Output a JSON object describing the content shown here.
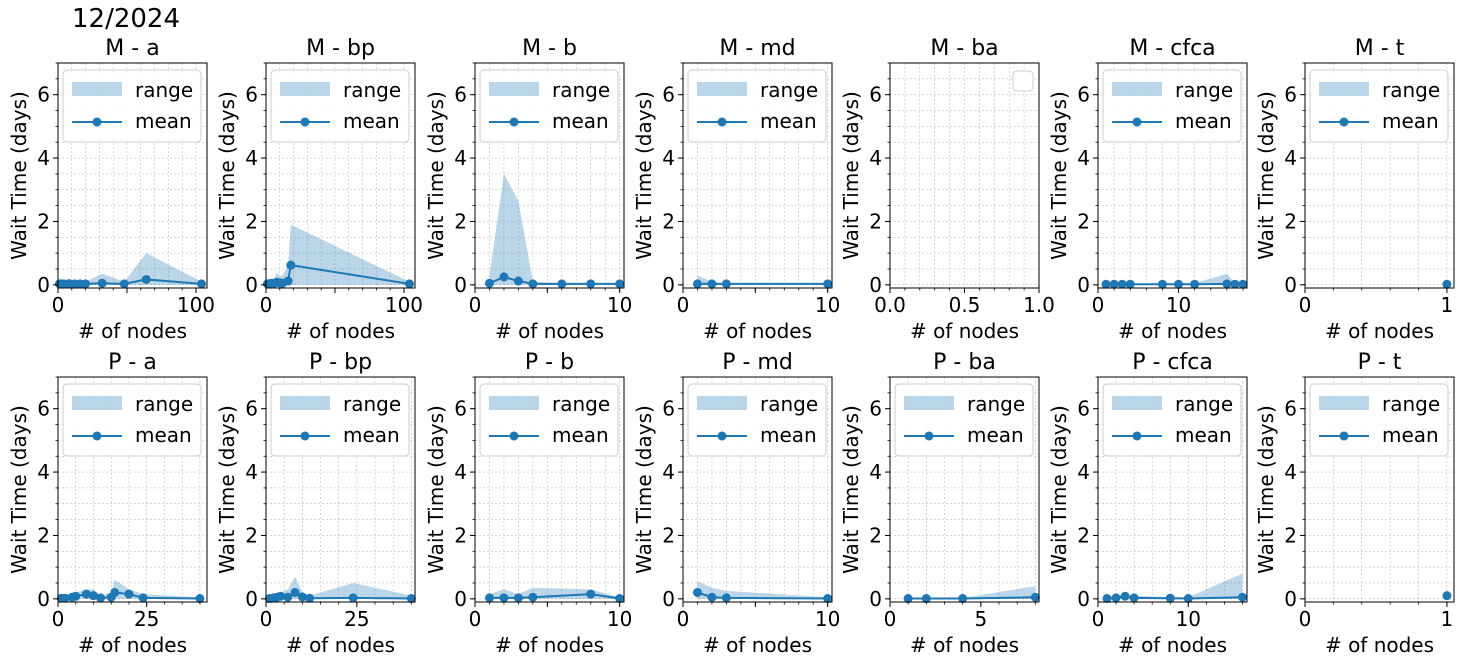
{
  "figure_title": "12/2024",
  "colors": {
    "series": "#1f77b4",
    "fill": "#1f77b4",
    "grid": "#b0b0b0"
  },
  "chart_data": [
    {
      "type": "line",
      "title": "M -  a",
      "xlabel": "# of nodes",
      "ylabel": "Wait Time (days)",
      "xlim": [
        0,
        108
      ],
      "ylim": [
        -0.1,
        7
      ],
      "xticks": [
        0,
        50,
        100
      ],
      "xticklabels": [
        "0",
        "",
        "100"
      ],
      "yticks": [
        0,
        2,
        4,
        6
      ],
      "grid": true,
      "legend": "upper-left",
      "legend_entries": [
        "range",
        "mean"
      ],
      "series": [
        {
          "kind": "range",
          "x": [
            1,
            2,
            4,
            8,
            12,
            16,
            20,
            32,
            48,
            64,
            104
          ],
          "low": [
            0,
            0,
            0,
            0,
            0,
            0,
            0,
            0,
            0,
            0,
            0
          ],
          "high": [
            0.08,
            0.08,
            0.08,
            0.15,
            0.1,
            0.12,
            0.1,
            0.35,
            0.1,
            1.0,
            0.1
          ]
        },
        {
          "kind": "mean",
          "x": [
            1,
            2,
            4,
            8,
            12,
            16,
            20,
            32,
            48,
            64,
            104
          ],
          "y": [
            0.03,
            0.03,
            0.03,
            0.04,
            0.03,
            0.03,
            0.03,
            0.05,
            0.03,
            0.17,
            0.03
          ]
        }
      ]
    },
    {
      "type": "line",
      "title": "M -  bp",
      "xlabel": "# of nodes",
      "ylabel": "Wait Time (days)",
      "xlim": [
        0,
        108
      ],
      "ylim": [
        -0.1,
        7
      ],
      "xticks": [
        0,
        50,
        100
      ],
      "xticklabels": [
        "0",
        "",
        "100"
      ],
      "yticks": [
        0,
        2,
        4,
        6
      ],
      "grid": true,
      "legend": "upper-left",
      "legend_entries": [
        "range",
        "mean"
      ],
      "series": [
        {
          "kind": "range",
          "x": [
            1,
            2,
            3,
            4,
            6,
            8,
            10,
            12,
            16,
            18,
            104
          ],
          "low": [
            0,
            0,
            0,
            0,
            0,
            0,
            0,
            0,
            0,
            0,
            0
          ],
          "high": [
            0.1,
            0.15,
            0.1,
            0.2,
            0.2,
            0.4,
            0.25,
            0.3,
            0.6,
            1.9,
            0.1
          ]
        },
        {
          "kind": "mean",
          "x": [
            1,
            2,
            3,
            4,
            6,
            8,
            10,
            12,
            16,
            18,
            104
          ],
          "y": [
            0.03,
            0.03,
            0.04,
            0.05,
            0.05,
            0.08,
            0.06,
            0.05,
            0.12,
            0.62,
            0.03
          ]
        }
      ]
    },
    {
      "type": "line",
      "title": "M -  b",
      "xlabel": "# of nodes",
      "ylabel": "Wait Time (days)",
      "xlim": [
        0,
        10.3
      ],
      "ylim": [
        -0.1,
        7
      ],
      "xticks": [
        0,
        5,
        10
      ],
      "xticklabels": [
        "0",
        "",
        "10"
      ],
      "yticks": [
        0,
        2,
        4,
        6
      ],
      "grid": true,
      "legend": "upper-left",
      "legend_entries": [
        "range",
        "mean"
      ],
      "series": [
        {
          "kind": "range",
          "x": [
            1,
            2,
            3,
            4,
            6,
            8,
            10
          ],
          "low": [
            0,
            0,
            0,
            0,
            0,
            0,
            0
          ],
          "high": [
            0.3,
            3.5,
            2.65,
            0.1,
            0.05,
            0.05,
            0.05
          ]
        },
        {
          "kind": "mean",
          "x": [
            1,
            2,
            3,
            4,
            6,
            8,
            10
          ],
          "y": [
            0.05,
            0.25,
            0.12,
            0.03,
            0.03,
            0.03,
            0.03
          ]
        }
      ]
    },
    {
      "type": "line",
      "title": "M -  md",
      "xlabel": "# of nodes",
      "ylabel": "Wait Time (days)",
      "xlim": [
        0,
        10.3
      ],
      "ylim": [
        -0.1,
        7
      ],
      "xticks": [
        0,
        5,
        10
      ],
      "xticklabels": [
        "0",
        "",
        "10"
      ],
      "yticks": [
        0,
        2,
        4,
        6
      ],
      "grid": true,
      "legend": "upper-left",
      "legend_entries": [
        "range",
        "mean"
      ],
      "series": [
        {
          "kind": "range",
          "x": [
            1,
            2,
            3,
            10
          ],
          "low": [
            0,
            0,
            0,
            0
          ],
          "high": [
            0.3,
            0.1,
            0.05,
            0.05
          ]
        },
        {
          "kind": "mean",
          "x": [
            1,
            2,
            3,
            10
          ],
          "y": [
            0.03,
            0.03,
            0.03,
            0.03
          ]
        }
      ]
    },
    {
      "type": "line",
      "title": "M -  ba",
      "xlabel": "# of nodes",
      "ylabel": "Wait Time (days)",
      "xlim": [
        0,
        1
      ],
      "ylim": [
        -0.1,
        7
      ],
      "xticks": [
        0,
        0.5,
        1.0
      ],
      "xticklabels": [
        "0.0",
        "0.5",
        "1.0"
      ],
      "yticks": [
        0,
        2,
        4,
        6
      ],
      "grid": true,
      "legend": "upper-right-empty",
      "legend_entries": [],
      "series": []
    },
    {
      "type": "line",
      "title": "M -  cfca",
      "xlabel": "# of nodes",
      "ylabel": "Wait Time (days)",
      "xlim": [
        0,
        18.5
      ],
      "ylim": [
        -0.1,
        7
      ],
      "xticks": [
        0,
        10
      ],
      "xticklabels": [
        "0",
        "10"
      ],
      "yticks": [
        0,
        2,
        4,
        6
      ],
      "grid": true,
      "legend": "upper-left",
      "legend_entries": [
        "range",
        "mean"
      ],
      "series": [
        {
          "kind": "range",
          "x": [
            1,
            2,
            3,
            4,
            8,
            10,
            12,
            16,
            17,
            18
          ],
          "low": [
            0,
            0,
            0,
            0,
            0,
            0,
            0,
            0,
            0,
            0
          ],
          "high": [
            0.05,
            0.05,
            0.05,
            0.05,
            0.05,
            0.05,
            0.05,
            0.35,
            0.05,
            0.05
          ]
        },
        {
          "kind": "mean",
          "x": [
            1,
            2,
            3,
            4,
            8,
            10,
            12,
            16,
            17,
            18
          ],
          "y": [
            0.02,
            0.02,
            0.02,
            0.02,
            0.02,
            0.02,
            0.02,
            0.03,
            0.02,
            0.02
          ]
        }
      ]
    },
    {
      "type": "line",
      "title": "M -  t",
      "xlabel": "# of nodes",
      "ylabel": "Wait Time (days)",
      "xlim": [
        0,
        1.05
      ],
      "ylim": [
        -0.1,
        7
      ],
      "xticks": [
        0,
        1
      ],
      "xticklabels": [
        "0",
        "1"
      ],
      "yticks": [
        0,
        2,
        4,
        6
      ],
      "grid": true,
      "legend": "upper-left",
      "legend_entries": [
        "range",
        "mean"
      ],
      "series": [
        {
          "kind": "range",
          "x": [
            1
          ],
          "low": [
            0
          ],
          "high": [
            0.02
          ]
        },
        {
          "kind": "mean",
          "x": [
            1
          ],
          "y": [
            0.02
          ]
        }
      ]
    },
    {
      "type": "line",
      "title": "P -  a",
      "xlabel": "# of nodes",
      "ylabel": "Wait Time (days)",
      "xlim": [
        0,
        42
      ],
      "ylim": [
        -0.1,
        7
      ],
      "xticks": [
        0,
        25
      ],
      "xticklabels": [
        "0",
        "25"
      ],
      "yticks": [
        0,
        2,
        4,
        6
      ],
      "grid": true,
      "legend": "upper-left",
      "legend_entries": [
        "range",
        "mean"
      ],
      "series": [
        {
          "kind": "range",
          "x": [
            1,
            2,
            4,
            5,
            8,
            10,
            12,
            15,
            16,
            20,
            24,
            40
          ],
          "low": [
            0,
            0,
            0,
            0,
            0,
            0,
            0,
            0,
            0,
            0,
            0,
            0
          ],
          "high": [
            0.1,
            0.1,
            0.2,
            0.2,
            0.3,
            0.3,
            0.1,
            0.2,
            0.6,
            0.3,
            0.15,
            0.05
          ]
        },
        {
          "kind": "mean",
          "x": [
            1,
            2,
            4,
            5,
            8,
            10,
            12,
            15,
            16,
            20,
            24,
            40
          ],
          "y": [
            0.02,
            0.02,
            0.05,
            0.08,
            0.15,
            0.1,
            0.03,
            0.05,
            0.2,
            0.15,
            0.03,
            0.01
          ]
        }
      ]
    },
    {
      "type": "line",
      "title": "P -  bp",
      "xlabel": "# of nodes",
      "ylabel": "Wait Time (days)",
      "xlim": [
        0,
        41
      ],
      "ylim": [
        -0.1,
        7
      ],
      "xticks": [
        0,
        25
      ],
      "xticklabels": [
        "0",
        "25"
      ],
      "yticks": [
        0,
        2,
        4,
        6
      ],
      "grid": true,
      "legend": "upper-left",
      "legend_entries": [
        "range",
        "mean"
      ],
      "series": [
        {
          "kind": "range",
          "x": [
            1,
            2,
            3,
            4,
            6,
            8,
            10,
            12,
            24,
            40
          ],
          "low": [
            0,
            0,
            0,
            0,
            0,
            0,
            0,
            0,
            0,
            0
          ],
          "high": [
            0.05,
            0.1,
            0.15,
            0.2,
            0.3,
            0.7,
            0.2,
            0.1,
            0.5,
            0.1
          ]
        },
        {
          "kind": "mean",
          "x": [
            1,
            2,
            3,
            4,
            6,
            8,
            10,
            12,
            24,
            40
          ],
          "y": [
            0.01,
            0.03,
            0.05,
            0.08,
            0.05,
            0.2,
            0.06,
            0.02,
            0.03,
            0.01
          ]
        }
      ]
    },
    {
      "type": "line",
      "title": "P -  b",
      "xlabel": "# of nodes",
      "ylabel": "Wait Time (days)",
      "xlim": [
        0,
        10.3
      ],
      "ylim": [
        -0.1,
        7
      ],
      "xticks": [
        0,
        5,
        10
      ],
      "xticklabels": [
        "0",
        "",
        "10"
      ],
      "yticks": [
        0,
        2,
        4,
        6
      ],
      "grid": true,
      "legend": "upper-left",
      "legend_entries": [
        "range",
        "mean"
      ],
      "series": [
        {
          "kind": "range",
          "x": [
            1,
            2,
            3,
            4,
            8,
            10
          ],
          "low": [
            0,
            0,
            0,
            0,
            0,
            0
          ],
          "high": [
            0.15,
            0.3,
            0.15,
            0.35,
            0.3,
            0.05
          ]
        },
        {
          "kind": "mean",
          "x": [
            1,
            2,
            3,
            4,
            8,
            10
          ],
          "y": [
            0.03,
            0.03,
            0.03,
            0.05,
            0.15,
            0.01
          ]
        }
      ]
    },
    {
      "type": "line",
      "title": "P -  md",
      "xlabel": "# of nodes",
      "ylabel": "Wait Time (days)",
      "xlim": [
        0,
        10.3
      ],
      "ylim": [
        -0.1,
        7
      ],
      "xticks": [
        0,
        5,
        10
      ],
      "xticklabels": [
        "0",
        "",
        "10"
      ],
      "yticks": [
        0,
        2,
        4,
        6
      ],
      "grid": true,
      "legend": "upper-left",
      "legend_entries": [
        "range",
        "mean"
      ],
      "series": [
        {
          "kind": "range",
          "x": [
            1,
            2,
            3,
            10
          ],
          "low": [
            0,
            0,
            0,
            0
          ],
          "high": [
            0.55,
            0.35,
            0.25,
            0.05
          ]
        },
        {
          "kind": "mean",
          "x": [
            1,
            2,
            3,
            10
          ],
          "y": [
            0.2,
            0.05,
            0.03,
            0.01
          ]
        }
      ]
    },
    {
      "type": "line",
      "title": "P -  ba",
      "xlabel": "# of nodes",
      "ylabel": "Wait Time (days)",
      "xlim": [
        0,
        8.2
      ],
      "ylim": [
        -0.1,
        7
      ],
      "xticks": [
        0,
        5
      ],
      "xticklabels": [
        "0",
        "5"
      ],
      "yticks": [
        0,
        2,
        4,
        6
      ],
      "grid": true,
      "legend": "upper-left",
      "legend_entries": [
        "range",
        "mean"
      ],
      "series": [
        {
          "kind": "range",
          "x": [
            1,
            2,
            4,
            8
          ],
          "low": [
            0,
            0,
            0,
            0
          ],
          "high": [
            0.03,
            0.03,
            0.03,
            0.4
          ]
        },
        {
          "kind": "mean",
          "x": [
            1,
            2,
            4,
            8
          ],
          "y": [
            0.01,
            0.01,
            0.01,
            0.05
          ]
        }
      ]
    },
    {
      "type": "line",
      "title": "P -  cfca",
      "xlabel": "# of nodes",
      "ylabel": "Wait Time (days)",
      "xlim": [
        0,
        16.5
      ],
      "ylim": [
        -0.1,
        7
      ],
      "xticks": [
        0,
        10
      ],
      "xticklabels": [
        "0",
        "10"
      ],
      "yticks": [
        0,
        2,
        4,
        6
      ],
      "grid": true,
      "legend": "upper-left",
      "legend_entries": [
        "range",
        "mean"
      ],
      "series": [
        {
          "kind": "range",
          "x": [
            1,
            2,
            3,
            4,
            8,
            10,
            16
          ],
          "low": [
            0,
            0,
            0,
            0,
            0,
            0,
            0
          ],
          "high": [
            0.05,
            0.1,
            0.15,
            0.1,
            0.05,
            0.05,
            0.8
          ]
        },
        {
          "kind": "mean",
          "x": [
            1,
            2,
            3,
            4,
            8,
            10,
            16
          ],
          "y": [
            0.01,
            0.03,
            0.08,
            0.03,
            0.02,
            0.01,
            0.05
          ]
        }
      ]
    },
    {
      "type": "line",
      "title": "P -  t",
      "xlabel": "# of nodes",
      "ylabel": "Wait Time (days)",
      "xlim": [
        0,
        1.05
      ],
      "ylim": [
        -0.1,
        7
      ],
      "xticks": [
        0,
        1
      ],
      "xticklabels": [
        "0",
        "1"
      ],
      "yticks": [
        0,
        2,
        4,
        6
      ],
      "grid": true,
      "legend": "upper-left",
      "legend_entries": [
        "range",
        "mean"
      ],
      "series": [
        {
          "kind": "range",
          "x": [
            1
          ],
          "low": [
            0
          ],
          "high": [
            0.1
          ]
        },
        {
          "kind": "mean",
          "x": [
            1
          ],
          "y": [
            0.1
          ]
        }
      ]
    }
  ]
}
